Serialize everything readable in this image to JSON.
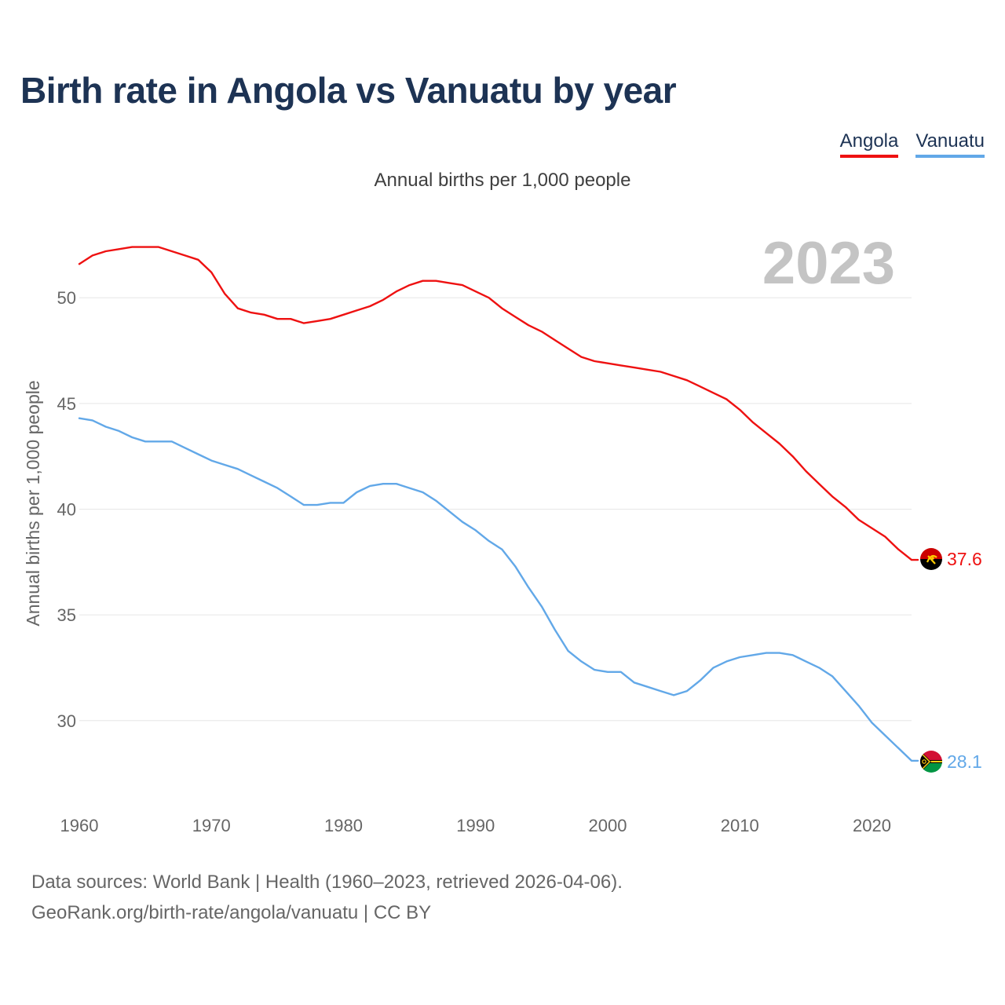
{
  "title": "Birth rate in Angola vs Vanuatu by year",
  "subtitle": "Annual births per 1,000 people",
  "legend": [
    {
      "label": "Angola",
      "color": "#ee1111"
    },
    {
      "label": "Vanuatu",
      "color": "#62a8e8"
    }
  ],
  "footer": {
    "line1": "Data sources: World Bank | Health (1960–2023, retrieved 2026-04-06).",
    "line2": "GeoRank.org/birth-rate/angola/vanuatu | CC BY"
  },
  "chart_data": {
    "type": "line",
    "title": "Birth rate in Angola vs Vanuatu by year",
    "ylabel": "Annual births per 1,000 people",
    "xlabel": "",
    "current_year": "2023",
    "xlim": [
      1960,
      2023
    ],
    "ylim": [
      26.5,
      53.5
    ],
    "x_ticks": [
      1960,
      1970,
      1980,
      1990,
      2000,
      2010,
      2020
    ],
    "y_ticks": [
      30,
      35,
      40,
      45,
      50
    ],
    "grid": true,
    "x": [
      1960,
      1961,
      1962,
      1963,
      1964,
      1965,
      1966,
      1967,
      1968,
      1969,
      1970,
      1971,
      1972,
      1973,
      1974,
      1975,
      1976,
      1977,
      1978,
      1979,
      1980,
      1981,
      1982,
      1983,
      1984,
      1985,
      1986,
      1987,
      1988,
      1989,
      1990,
      1991,
      1992,
      1993,
      1994,
      1995,
      1996,
      1997,
      1998,
      1999,
      2000,
      2001,
      2002,
      2003,
      2004,
      2005,
      2006,
      2007,
      2008,
      2009,
      2010,
      2011,
      2012,
      2013,
      2014,
      2015,
      2016,
      2017,
      2018,
      2019,
      2020,
      2021,
      2022,
      2023
    ],
    "series": [
      {
        "name": "Angola",
        "color": "#ee1111",
        "end_label": "37.6",
        "values": [
          51.6,
          52.0,
          52.2,
          52.3,
          52.4,
          52.4,
          52.4,
          52.2,
          52.0,
          51.8,
          51.2,
          50.2,
          49.5,
          49.3,
          49.2,
          49.0,
          49.0,
          48.8,
          48.9,
          49.0,
          49.2,
          49.4,
          49.6,
          49.9,
          50.3,
          50.6,
          50.8,
          50.8,
          50.7,
          50.6,
          50.3,
          50.0,
          49.5,
          49.1,
          48.7,
          48.4,
          48.0,
          47.6,
          47.2,
          47.0,
          46.9,
          46.8,
          46.7,
          46.6,
          46.5,
          46.3,
          46.1,
          45.8,
          45.5,
          45.2,
          44.7,
          44.1,
          43.6,
          43.1,
          42.5,
          41.8,
          41.2,
          40.6,
          40.1,
          39.5,
          39.1,
          38.7,
          38.1,
          37.6
        ]
      },
      {
        "name": "Vanuatu",
        "color": "#62a8e8",
        "end_label": "28.1",
        "values": [
          44.3,
          44.2,
          43.9,
          43.7,
          43.4,
          43.2,
          43.2,
          43.2,
          42.9,
          42.6,
          42.3,
          42.1,
          41.9,
          41.6,
          41.3,
          41.0,
          40.6,
          40.2,
          40.2,
          40.3,
          40.3,
          40.8,
          41.1,
          41.2,
          41.2,
          41.0,
          40.8,
          40.4,
          39.9,
          39.4,
          39.0,
          38.5,
          38.1,
          37.3,
          36.3,
          35.4,
          34.3,
          33.3,
          32.8,
          32.4,
          32.3,
          32.3,
          31.8,
          31.6,
          31.4,
          31.2,
          31.4,
          31.9,
          32.5,
          32.8,
          33.0,
          33.1,
          33.2,
          33.2,
          33.1,
          32.8,
          32.5,
          32.1,
          31.4,
          30.7,
          29.9,
          29.3,
          28.7,
          28.1
        ]
      }
    ]
  }
}
